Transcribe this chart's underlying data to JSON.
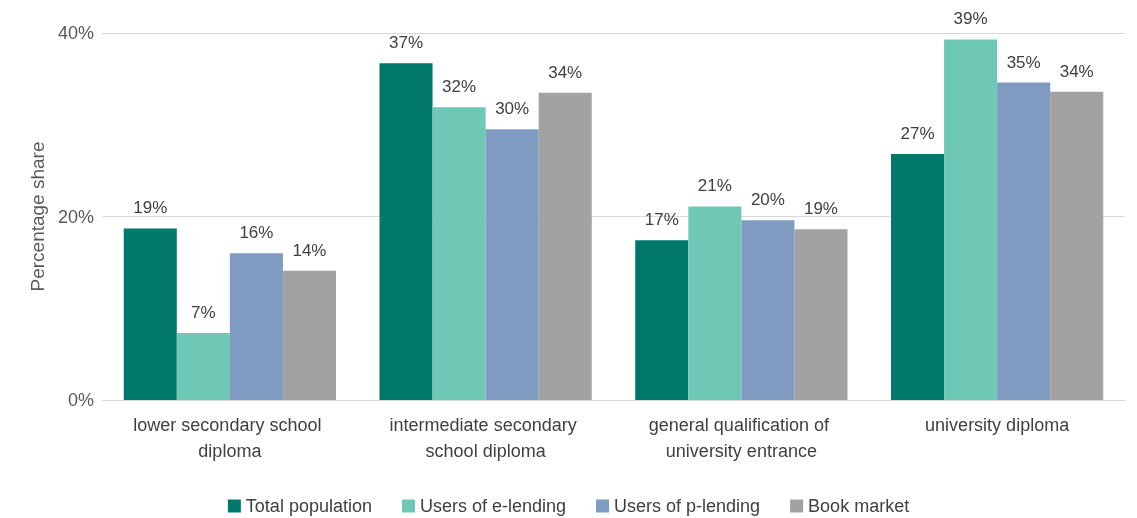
{
  "chart_data": {
    "type": "bar",
    "ylabel": "Percentage share",
    "categories": [
      "lower secondary school diploma",
      "intermediate secondary school diploma",
      "general qualification of university entrance",
      "university diploma"
    ],
    "series": [
      {
        "name": "Total population",
        "color": "#00786a",
        "values": [
          18.7,
          36.7,
          17.4,
          26.8
        ],
        "value_labels": [
          "19%",
          "37%",
          "17%",
          "27%"
        ]
      },
      {
        "name": "Users of e-lending",
        "color": "#6fc8b5",
        "values": [
          7.3,
          31.9,
          21.1,
          39.3
        ],
        "value_labels": [
          "7%",
          "32%",
          "21%",
          "39%"
        ]
      },
      {
        "name": "Users of p-lending",
        "color": "#7f9bc1",
        "values": [
          16.0,
          29.5,
          19.6,
          34.6
        ],
        "value_labels": [
          "16%",
          "30%",
          "20%",
          "35%"
        ]
      },
      {
        "name": "Book market",
        "color": "#a2a2a2",
        "values": [
          14.1,
          33.5,
          18.6,
          33.6
        ],
        "value_labels": [
          "14%",
          "34%",
          "19%",
          "34%"
        ]
      }
    ],
    "ylim": [
      0,
      40
    ],
    "yticks": [
      {
        "value": 0,
        "label": "0%"
      },
      {
        "value": 20,
        "label": "20%"
      },
      {
        "value": 40,
        "label": "40%"
      }
    ],
    "grid": "y",
    "legend": "bottom"
  }
}
